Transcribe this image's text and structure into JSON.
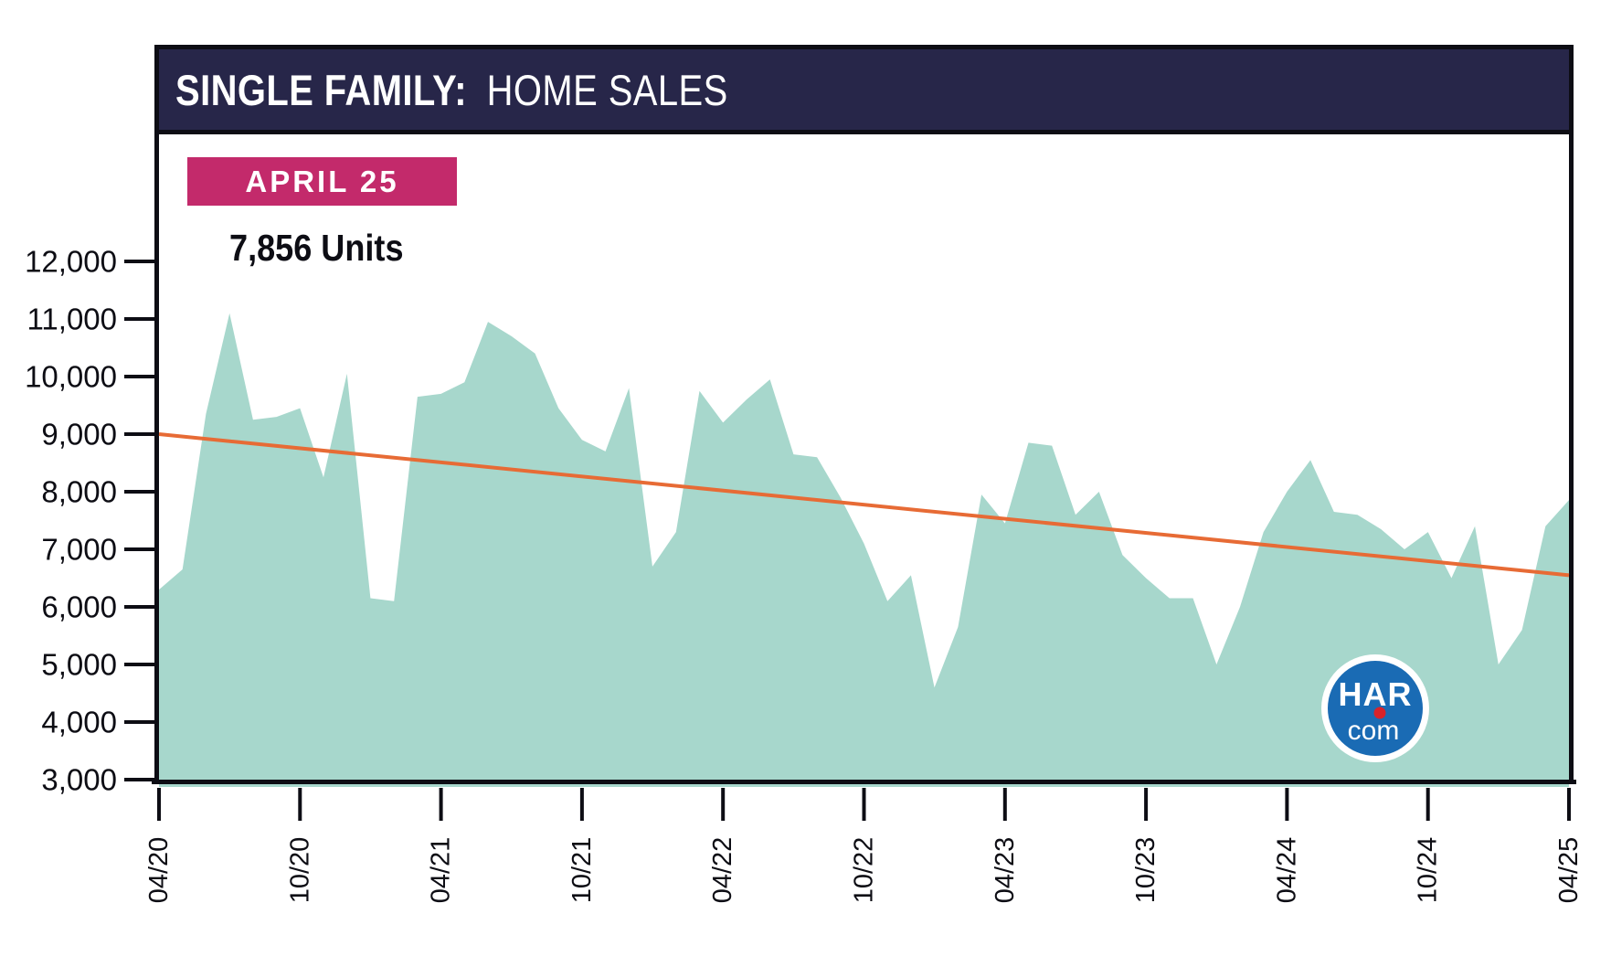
{
  "header": {
    "title_bold": "SINGLE FAMILY:",
    "title_regular": "HOME SALES"
  },
  "annotations": {
    "period_badge": "APRIL 25",
    "latest_value": "7,856 Units"
  },
  "logo": {
    "line1": "HAR",
    "line2": "com"
  },
  "colors": {
    "header_bg": "#272649",
    "badge_bg": "#c32a6b",
    "area_fill": "#a7d7cc",
    "trend_line": "#e76b35",
    "axis_black": "#0d0d14",
    "logo_blue": "#1a6bb4",
    "logo_dot_red": "#d8232a",
    "text_black": "#0d0d14",
    "white": "#ffffff"
  },
  "chart_data": {
    "type": "area",
    "title": "SINGLE FAMILY: HOME SALES",
    "subtitle": "APRIL 25 — 7,856 Units",
    "series_name": "Single-family home sales (units)",
    "xlabel": "",
    "ylabel": "",
    "ylim": [
      3000,
      14500
    ],
    "grid": false,
    "legend": false,
    "x": [
      "04/20",
      "05/20",
      "06/20",
      "07/20",
      "08/20",
      "09/20",
      "10/20",
      "11/20",
      "12/20",
      "01/21",
      "02/21",
      "03/21",
      "04/21",
      "05/21",
      "06/21",
      "07/21",
      "08/21",
      "09/21",
      "10/21",
      "11/21",
      "12/21",
      "01/22",
      "02/22",
      "03/22",
      "04/22",
      "05/22",
      "06/22",
      "07/22",
      "08/22",
      "09/22",
      "10/22",
      "11/22",
      "12/22",
      "01/23",
      "02/23",
      "03/23",
      "04/23",
      "05/23",
      "06/23",
      "07/23",
      "08/23",
      "09/23",
      "10/23",
      "11/23",
      "12/23",
      "01/24",
      "02/24",
      "03/24",
      "04/24",
      "05/24",
      "06/24",
      "07/24",
      "08/24",
      "09/24",
      "10/24",
      "11/24",
      "12/24",
      "01/25",
      "02/25",
      "03/25",
      "04/25"
    ],
    "values": [
      6300,
      6650,
      9350,
      11100,
      9250,
      9300,
      9450,
      8250,
      10050,
      6150,
      6100,
      9650,
      9700,
      9900,
      10950,
      10700,
      10400,
      9450,
      8900,
      8700,
      9800,
      6700,
      7300,
      9750,
      9200,
      9600,
      9950,
      8650,
      8600,
      7900,
      7100,
      6100,
      6550,
      4600,
      5650,
      7950,
      7450,
      8850,
      8800,
      7600,
      8000,
      6900,
      6500,
      6150,
      6150,
      5000,
      6000,
      7300,
      8000,
      8550,
      7650,
      7600,
      7350,
      7000,
      7300,
      6500,
      7400,
      5000,
      5600,
      7400,
      7856
    ],
    "y_axis": {
      "tick_values": [
        12000,
        11000,
        10000,
        9000,
        8000,
        7000,
        6000,
        5000,
        4000,
        3000
      ],
      "tick_labels": [
        "12,000",
        "11,000",
        "10,000",
        "9,000",
        "8,000",
        "7,000",
        "6,000",
        "5,000",
        "4,000",
        "3,000"
      ]
    },
    "x_axis": {
      "tick_every_months": 6,
      "tick_labels": [
        "04/20",
        "10/20",
        "04/21",
        "10/21",
        "04/22",
        "10/22",
        "04/23",
        "10/23",
        "04/24",
        "10/24",
        "04/25"
      ],
      "label_rotation_deg": -90
    },
    "trend_line": {
      "start_value": 9000,
      "end_value": 6550,
      "color": "#e76b35"
    }
  }
}
